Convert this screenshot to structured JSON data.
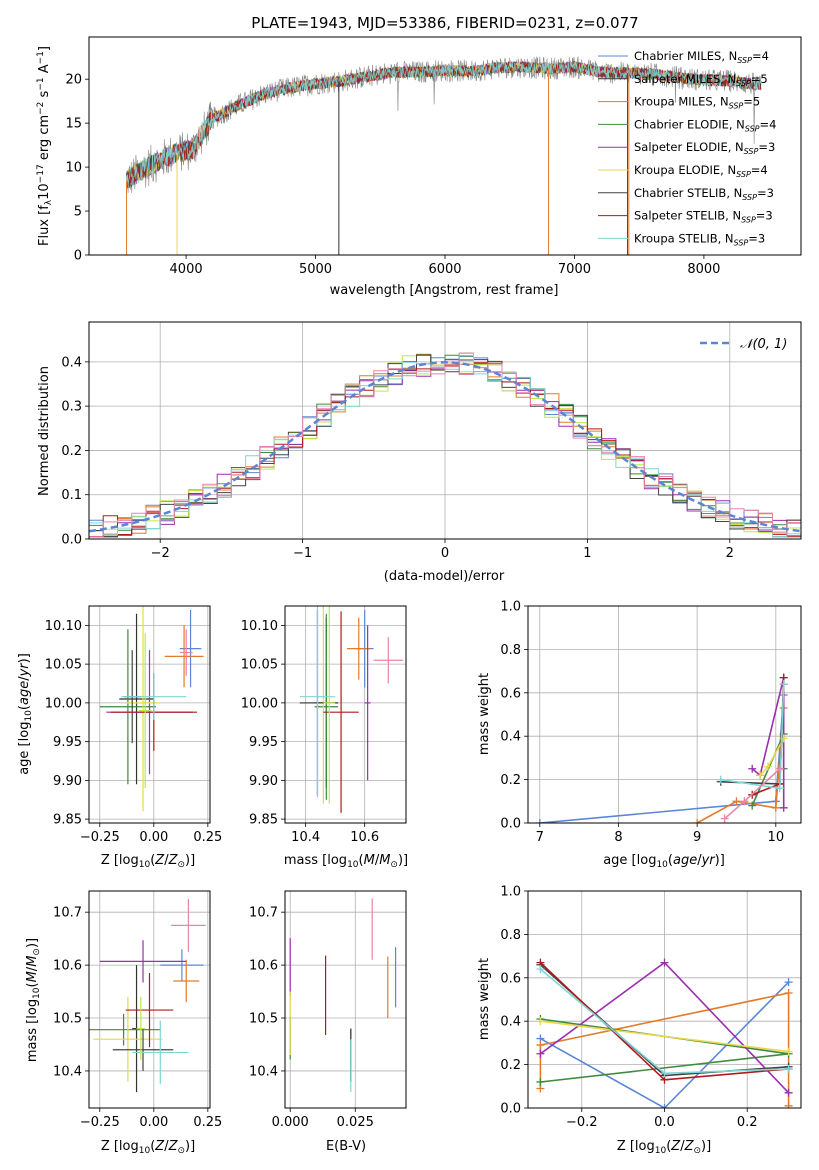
{
  "title": "PLATE=1943, MJD=53386, FIBERID=0231, z=0.077",
  "colors": {
    "Chabrier MILES": "#5b86d6",
    "Salpeter MILES": "#333333",
    "Kroupa MILES": "#e37b2a",
    "Chabrier ELODIE": "#3e8a3e",
    "Salpeter ELODIE": "#9b2fae",
    "Kroupa ELODIE": "#e8d84a",
    "Chabrier STELIB": "#444444",
    "Salpeter STELIB": "#b01a1a",
    "Kroupa STELIB": "#7fd6d6",
    "extra_pink": "#e884a8",
    "extra_lime": "#bde84a",
    "data_gray": "#777777"
  },
  "chart_data": [
    {
      "id": "spectrum",
      "type": "line",
      "title": "PLATE=1943, MJD=53386, FIBERID=0231, z=0.077",
      "xlabel": "wavelength [Angstrom, rest frame]",
      "ylabel": "Flux [fλ10⁻¹⁷ erg cm⁻² s⁻¹ A⁻¹]",
      "xlim": [
        3250,
        8750
      ],
      "ylim": [
        0,
        24.8
      ],
      "xticks": [
        4000,
        5000,
        6000,
        7000,
        8000
      ],
      "yticks": [
        0,
        5,
        10,
        15,
        20
      ],
      "grid": false,
      "legend_position": "right",
      "continuum": [
        [
          3540,
          8.5
        ],
        [
          3700,
          10
        ],
        [
          3900,
          11.5
        ],
        [
          4050,
          12
        ],
        [
          4200,
          15.5
        ],
        [
          4400,
          17
        ],
        [
          4600,
          18.3
        ],
        [
          4800,
          19
        ],
        [
          5000,
          19.5
        ],
        [
          5200,
          19.8
        ],
        [
          5400,
          20.3
        ],
        [
          5600,
          20.8
        ],
        [
          5800,
          20.8
        ],
        [
          6000,
          21
        ],
        [
          6200,
          20.9
        ],
        [
          6400,
          21.3
        ],
        [
          6600,
          21.4
        ],
        [
          6800,
          21.2
        ],
        [
          7000,
          21.4
        ],
        [
          7200,
          20.8
        ],
        [
          7400,
          20.7
        ],
        [
          7600,
          20.6
        ],
        [
          7800,
          20.2
        ],
        [
          8000,
          19.9
        ],
        [
          8200,
          19.8
        ],
        [
          8400,
          19.4
        ]
      ],
      "series": [
        {
          "name": "Chabrier MILES, N_SSP=4",
          "ssp": "N",
          "sub": "SSP",
          "val": "4",
          "color": "Chabrier MILES"
        },
        {
          "name": "Salpeter MILES, N_SSP=5",
          "ssp": "N",
          "sub": "SSP",
          "val": "5",
          "color": "Salpeter MILES"
        },
        {
          "name": "Kroupa MILES, N_SSP=5",
          "ssp": "N",
          "sub": "SSP",
          "val": "5",
          "color": "Kroupa MILES"
        },
        {
          "name": "Chabrier ELODIE, N_SSP=4",
          "ssp": "N",
          "sub": "SSP",
          "val": "4",
          "color": "Chabrier ELODIE"
        },
        {
          "name": "Salpeter ELODIE, N_SSP=3",
          "ssp": "N",
          "sub": "SSP",
          "val": "3",
          "color": "Salpeter ELODIE"
        },
        {
          "name": "Kroupa ELODIE, N_SSP=4",
          "ssp": "N",
          "sub": "SSP",
          "val": "4",
          "color": "Kroupa ELODIE"
        },
        {
          "name": "Chabrier STELIB, N_SSP=3",
          "ssp": "N",
          "sub": "SSP",
          "val": "3",
          "color": "Chabrier STELIB"
        },
        {
          "name": "Salpeter STELIB, N_SSP=3",
          "ssp": "N",
          "sub": "SSP",
          "val": "3",
          "color": "Salpeter STELIB"
        },
        {
          "name": "Kroupa STELIB, N_SSP=3",
          "ssp": "N",
          "sub": "SSP",
          "val": "3",
          "color": "Kroupa STELIB"
        }
      ],
      "legend_labels": [
        "Chabrier MILES, N",
        "Salpeter MILES, N",
        "Kroupa MILES, N",
        "Chabrier ELODIE, N",
        "Salpeter ELODIE, N",
        "Kroupa ELODIE, N",
        "Chabrier STELIB, N",
        "Salpeter STELIB, N",
        "Kroupa STELIB, N"
      ],
      "legend_subs": [
        "SSP",
        "SSP",
        "SSP",
        "SSP",
        "SSP",
        "SSP",
        "SSP",
        "SSP",
        "SSP"
      ],
      "legend_vals": [
        "=4",
        "=5",
        "=5",
        "=4",
        "=3",
        "=4",
        "=3",
        "=3",
        "=3"
      ]
    },
    {
      "id": "residuals",
      "type": "histogram",
      "xlabel": "(data-model)/error",
      "ylabel": "Normed distribution",
      "xlim": [
        -2.5,
        2.5
      ],
      "ylim": [
        0,
        0.49
      ],
      "xticks": [
        -2,
        -1,
        0,
        1,
        2
      ],
      "yticks": [
        0.0,
        0.1,
        0.2,
        0.3,
        0.4
      ],
      "grid": true,
      "legend": [
        "𝒩(0, 1)"
      ],
      "legend_position": "top-right",
      "bin_width": 0.1
    },
    {
      "id": "age_vs_Z",
      "type": "errorbar",
      "xlabel": "Z [log₁₀(Z/Z⊙)]",
      "ylabel": "age  [log₁₀(age/yr)]",
      "xlim": [
        -0.3,
        0.26
      ],
      "ylim": [
        9.845,
        10.125
      ],
      "xticks": [
        -0.25,
        0.0,
        0.25
      ],
      "yticks": [
        9.85,
        9.9,
        9.95,
        10.0,
        10.05,
        10.1
      ],
      "grid": true,
      "points": [
        {
          "x": 0.17,
          "y": 10.07,
          "xe": 0.05,
          "ye": 0.05,
          "c": "Chabrier MILES"
        },
        {
          "x": -0.08,
          "y": 10.005,
          "xe": 0.08,
          "ye": 0.11,
          "c": "Salpeter MILES"
        },
        {
          "x": 0.14,
          "y": 10.06,
          "xe": 0.09,
          "ye": 0.04,
          "c": "Kroupa MILES"
        },
        {
          "x": -0.12,
          "y": 9.995,
          "xe": 0.13,
          "ye": 0.1,
          "c": "Chabrier ELODIE"
        },
        {
          "x": -0.02,
          "y": 9.988,
          "xe": 0.2,
          "ye": 0.08,
          "c": "Salpeter ELODIE"
        },
        {
          "x": -0.05,
          "y": 10.0,
          "xe": 0.08,
          "ye": 0.14,
          "c": "Kroupa ELODIE"
        },
        {
          "x": -0.1,
          "y": 10.008,
          "xe": 0.04,
          "ye": 0.06,
          "c": "Chabrier STELIB"
        },
        {
          "x": 0.0,
          "y": 9.988,
          "xe": 0.2,
          "ye": 0.05,
          "c": "Salpeter STELIB"
        },
        {
          "x": 0.0,
          "y": 10.008,
          "xe": 0.15,
          "ye": 0.03,
          "c": "Kroupa STELIB"
        },
        {
          "x": 0.15,
          "y": 10.065,
          "xe": 0.03,
          "ye": 0.03,
          "c": "extra_pink"
        },
        {
          "x": -0.04,
          "y": 9.99,
          "xe": 0.03,
          "ye": 0.1,
          "c": "extra_lime"
        }
      ]
    },
    {
      "id": "age_vs_mass",
      "type": "errorbar",
      "xlabel": "mass [log₁₀(M/M⊙)]",
      "ylabel": "",
      "xlim": [
        10.33,
        10.74
      ],
      "ylim": [
        9.845,
        10.125
      ],
      "xticks": [
        10.4,
        10.6
      ],
      "yticks": [
        9.85,
        9.9,
        9.95,
        10.0,
        10.05,
        10.1
      ],
      "grid": true,
      "points": [
        {
          "x": 10.6,
          "y": 10.07,
          "xe": 0.03,
          "ye": 0.05,
          "c": "Chabrier MILES"
        },
        {
          "x": 10.47,
          "y": 10.0,
          "xe": 0.04,
          "ye": 0.11,
          "c": "Salpeter MILES"
        },
        {
          "x": 10.58,
          "y": 10.07,
          "xe": 0.04,
          "ye": 0.04,
          "c": "Kroupa MILES"
        },
        {
          "x": 10.47,
          "y": 9.995,
          "xe": 0.04,
          "ye": 0.12,
          "c": "Chabrier ELODIE"
        },
        {
          "x": 10.61,
          "y": 10.0,
          "xe": 0.01,
          "ye": 0.1,
          "c": "Salpeter ELODIE"
        },
        {
          "x": 10.46,
          "y": 10.0,
          "xe": 0.01,
          "ye": 0.13,
          "c": "Kroupa ELODIE"
        },
        {
          "x": 10.44,
          "y": 10.0,
          "xe": 0.06,
          "ye": 0.12,
          "c": "Chabrier STELIB"
        },
        {
          "x": 10.52,
          "y": 9.988,
          "xe": 0.06,
          "ye": 0.13,
          "c": "Salpeter STELIB"
        },
        {
          "x": 10.44,
          "y": 10.008,
          "xe": 0.06,
          "ye": 0.13,
          "c": "Kroupa STELIB"
        },
        {
          "x": 10.68,
          "y": 10.055,
          "xe": 0.05,
          "ye": 0.03,
          "c": "extra_pink"
        },
        {
          "x": 10.48,
          "y": 10.0,
          "xe": 0.02,
          "ye": 0.13,
          "c": "extra_lime"
        }
      ]
    },
    {
      "id": "weight_vs_age",
      "type": "line",
      "xlabel": "age  [log₁₀(age/yr)]",
      "ylabel": "mass weight",
      "xlim": [
        6.85,
        10.32
      ],
      "ylim": [
        0,
        1.0
      ],
      "xticks": [
        7,
        8,
        9,
        10
      ],
      "yticks": [
        0.0,
        0.2,
        0.4,
        0.6,
        0.8,
        1.0
      ],
      "grid": true,
      "series": [
        {
          "c": "Chabrier MILES",
          "pts": [
            [
              7.0,
              0.0
            ],
            [
              10.0,
              0.1
            ],
            [
              10.1,
              0.59
            ]
          ]
        },
        {
          "c": "Kroupa MILES",
          "pts": [
            [
              9.0,
              0.0
            ],
            [
              9.5,
              0.1
            ],
            [
              10.0,
              0.07
            ],
            [
              10.1,
              0.53
            ]
          ]
        },
        {
          "c": "Chabrier ELODIE",
          "pts": [
            [
              9.7,
              0.08
            ],
            [
              10.1,
              0.41
            ],
            [
              10.1,
              0.25
            ]
          ]
        },
        {
          "c": "Salpeter ELODIE",
          "pts": [
            [
              9.7,
              0.25
            ],
            [
              9.8,
              0.22
            ],
            [
              10.1,
              0.67
            ],
            [
              10.1,
              0.07
            ]
          ]
        },
        {
          "c": "Kroupa ELODIE",
          "pts": [
            [
              9.8,
              0.22
            ],
            [
              9.9,
              0.26
            ],
            [
              10.1,
              0.39
            ]
          ]
        },
        {
          "c": "Chabrier STELIB",
          "pts": [
            [
              9.3,
              0.19
            ],
            [
              10.05,
              0.18
            ],
            [
              10.1,
              0.64
            ]
          ]
        },
        {
          "c": "Salpeter STELIB",
          "pts": [
            [
              9.7,
              0.13
            ],
            [
              10.05,
              0.18
            ],
            [
              10.1,
              0.67
            ]
          ]
        },
        {
          "c": "Kroupa STELIB",
          "pts": [
            [
              9.3,
              0.2
            ],
            [
              10.05,
              0.16
            ],
            [
              10.1,
              0.64
            ]
          ]
        },
        {
          "c": "extra_pink",
          "pts": [
            [
              9.35,
              0.02
            ],
            [
              9.6,
              0.1
            ],
            [
              10.05,
              0.25
            ]
          ]
        }
      ]
    },
    {
      "id": "mass_vs_Z",
      "type": "errorbar",
      "xlabel": "Z [log₁₀(Z/Z⊙)]",
      "ylabel": "mass [log₁₀(M/M⊙)]",
      "xlim": [
        -0.3,
        0.26
      ],
      "ylim": [
        10.33,
        10.74
      ],
      "xticks": [
        -0.25,
        0.0,
        0.25
      ],
      "yticks": [
        10.4,
        10.5,
        10.6,
        10.7
      ],
      "grid": true,
      "points": [
        {
          "x": 0.13,
          "y": 10.6,
          "xe": 0.1,
          "ye": 0.03,
          "c": "Chabrier MILES"
        },
        {
          "x": -0.08,
          "y": 10.48,
          "xe": 0.02,
          "ye": 0.12,
          "c": "Salpeter MILES"
        },
        {
          "x": 0.15,
          "y": 10.57,
          "xe": 0.06,
          "ye": 0.04,
          "c": "Kroupa MILES"
        },
        {
          "x": -0.14,
          "y": 10.478,
          "xe": 0.17,
          "ye": 0.03,
          "c": "Chabrier ELODIE"
        },
        {
          "x": -0.05,
          "y": 10.607,
          "xe": 0.2,
          "ye": 0.04,
          "c": "Salpeter ELODIE"
        },
        {
          "x": -0.12,
          "y": 10.46,
          "xe": 0.16,
          "ye": 0.08,
          "c": "Kroupa ELODIE"
        },
        {
          "x": -0.05,
          "y": 10.44,
          "xe": 0.14,
          "ye": 0.04,
          "c": "Chabrier STELIB"
        },
        {
          "x": -0.02,
          "y": 10.515,
          "xe": 0.11,
          "ye": 0.07,
          "c": "Salpeter STELIB"
        },
        {
          "x": 0.03,
          "y": 10.435,
          "xe": 0.13,
          "ye": 0.06,
          "c": "Kroupa STELIB"
        },
        {
          "x": 0.16,
          "y": 10.675,
          "xe": 0.08,
          "ye": 0.05,
          "c": "extra_pink"
        },
        {
          "x": -0.06,
          "y": 10.48,
          "xe": 0.02,
          "ye": 0.06,
          "c": "extra_lime"
        }
      ]
    },
    {
      "id": "mass_vs_EBV",
      "type": "errorbar",
      "xlabel": "E(B-V)",
      "ylabel": "",
      "xlim": [
        -0.002,
        0.0445
      ],
      "ylim": [
        10.33,
        10.74
      ],
      "xticks": [
        0.0,
        0.025
      ],
      "yticks": [
        10.4,
        10.5,
        10.6,
        10.7
      ],
      "grid": true,
      "points": [
        {
          "x": 0.0405,
          "y": 10.577,
          "xe": 0,
          "ye": 0.057,
          "c": "Chabrier MILES"
        },
        {
          "x": 0.0233,
          "y": 10.43,
          "xe": 0,
          "ye": 0.05,
          "c": "Salpeter MILES"
        },
        {
          "x": 0.0375,
          "y": 10.558,
          "xe": 0,
          "ye": 0.058,
          "c": "Kroupa MILES"
        },
        {
          "x": 0.0,
          "y": 10.462,
          "xe": 0,
          "ye": 0.04,
          "c": "Chabrier ELODIE"
        },
        {
          "x": 0.0,
          "y": 10.596,
          "xe": 0,
          "ye": 0.055,
          "c": "Salpeter ELODIE"
        },
        {
          "x": 0.0,
          "y": 10.49,
          "xe": 0,
          "ye": 0.06,
          "c": "Kroupa ELODIE"
        },
        {
          "x": 0.0233,
          "y": 10.43,
          "xe": 0,
          "ye": 0.05,
          "c": "Chabrier STELIB"
        },
        {
          "x": 0.0136,
          "y": 10.543,
          "xe": 0,
          "ye": 0.075,
          "c": "Salpeter STELIB"
        },
        {
          "x": 0.0233,
          "y": 10.41,
          "xe": 0,
          "ye": 0.05,
          "c": "Kroupa STELIB"
        },
        {
          "x": 0.0315,
          "y": 10.668,
          "xe": 0,
          "ye": 0.058,
          "c": "extra_pink"
        }
      ]
    },
    {
      "id": "weight_vs_Z",
      "type": "line",
      "xlabel": "Z [log₁₀(Z/Z⊙)]",
      "ylabel": "mass weight",
      "xlim": [
        -0.33,
        0.33
      ],
      "ylim": [
        0,
        1.0
      ],
      "xticks": [
        -0.2,
        0.0,
        0.2
      ],
      "yticks": [
        0.0,
        0.2,
        0.4,
        0.6,
        0.8,
        1.0
      ],
      "grid": true,
      "series": [
        {
          "c": "Chabrier MILES",
          "pts": [
            [
              -0.3,
              0.32
            ],
            [
              0.0,
              0.0
            ],
            [
              0.3,
              0.58
            ]
          ]
        },
        {
          "c": "Kroupa MILES",
          "pts": [
            [
              -0.3,
              0.09
            ],
            [
              -0.3,
              0.29
            ],
            [
              0.3,
              0.53
            ],
            [
              0.3,
              0.01
            ]
          ]
        },
        {
          "c": "Chabrier ELODIE",
          "pts": [
            [
              -0.3,
              0.41
            ],
            [
              0.3,
              0.25
            ],
            [
              -0.3,
              0.12
            ]
          ]
        },
        {
          "c": "Salpeter ELODIE",
          "pts": [
            [
              -0.3,
              0.25
            ],
            [
              0.0,
              0.67
            ],
            [
              0.3,
              0.07
            ]
          ]
        },
        {
          "c": "Kroupa ELODIE",
          "pts": [
            [
              -0.3,
              0.4
            ],
            [
              0.3,
              0.26
            ]
          ]
        },
        {
          "c": "Chabrier STELIB",
          "pts": [
            [
              -0.3,
              0.66
            ],
            [
              0.0,
              0.15
            ],
            [
              0.3,
              0.19
            ]
          ]
        },
        {
          "c": "Salpeter STELIB",
          "pts": [
            [
              -0.3,
              0.67
            ],
            [
              0.0,
              0.13
            ],
            [
              0.3,
              0.18
            ]
          ]
        },
        {
          "c": "Kroupa STELIB",
          "pts": [
            [
              -0.3,
              0.64
            ],
            [
              0.0,
              0.16
            ],
            [
              0.3,
              0.18
            ]
          ]
        }
      ]
    }
  ]
}
